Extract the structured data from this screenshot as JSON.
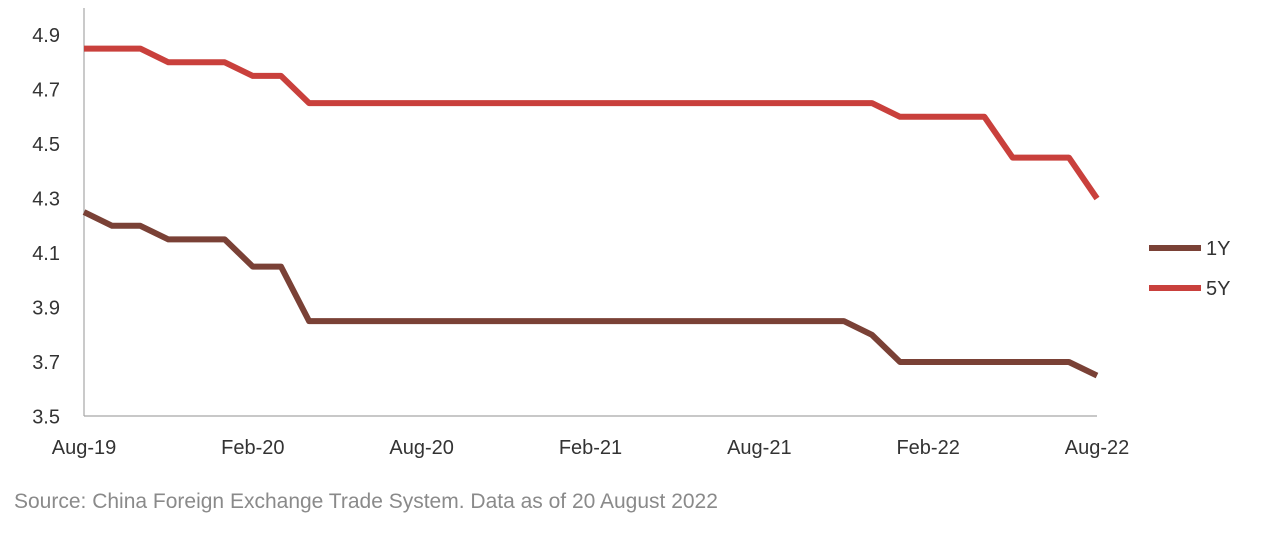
{
  "chart_data": {
    "type": "line",
    "title": "",
    "xlabel": "",
    "ylabel": "",
    "x": [
      "Aug-19",
      "Sep-19",
      "Oct-19",
      "Nov-19",
      "Dec-19",
      "Jan-20",
      "Feb-20",
      "Mar-20",
      "Apr-20",
      "May-20",
      "Jun-20",
      "Jul-20",
      "Aug-20",
      "Sep-20",
      "Oct-20",
      "Nov-20",
      "Dec-20",
      "Jan-21",
      "Feb-21",
      "Mar-21",
      "Apr-21",
      "May-21",
      "Jun-21",
      "Jul-21",
      "Aug-21",
      "Sep-21",
      "Oct-21",
      "Nov-21",
      "Dec-21",
      "Jan-22",
      "Feb-22",
      "Mar-22",
      "Apr-22",
      "May-22",
      "Jun-22",
      "Jul-22",
      "Aug-22"
    ],
    "x_tick_labels": [
      "Aug-19",
      "Feb-20",
      "Aug-20",
      "Feb-21",
      "Aug-21",
      "Feb-22",
      "Aug-22"
    ],
    "ylim": [
      3.5,
      4.9
    ],
    "y_ticks": [
      "3.5",
      "3.7",
      "3.9",
      "4.1",
      "4.3",
      "4.5",
      "4.7",
      "4.9"
    ],
    "grid": false,
    "legend_position": "right",
    "series": [
      {
        "name": "1Y",
        "color": "#7a4136",
        "values": [
          4.25,
          4.2,
          4.2,
          4.15,
          4.15,
          4.15,
          4.05,
          4.05,
          3.85,
          3.85,
          3.85,
          3.85,
          3.85,
          3.85,
          3.85,
          3.85,
          3.85,
          3.85,
          3.85,
          3.85,
          3.85,
          3.85,
          3.85,
          3.85,
          3.85,
          3.85,
          3.85,
          3.85,
          3.8,
          3.7,
          3.7,
          3.7,
          3.7,
          3.7,
          3.7,
          3.7,
          3.65
        ]
      },
      {
        "name": "5Y",
        "color": "#c9403c",
        "values": [
          4.85,
          4.85,
          4.85,
          4.8,
          4.8,
          4.8,
          4.75,
          4.75,
          4.65,
          4.65,
          4.65,
          4.65,
          4.65,
          4.65,
          4.65,
          4.65,
          4.65,
          4.65,
          4.65,
          4.65,
          4.65,
          4.65,
          4.65,
          4.65,
          4.65,
          4.65,
          4.65,
          4.65,
          4.65,
          4.6,
          4.6,
          4.6,
          4.6,
          4.45,
          4.45,
          4.45,
          4.3
        ]
      }
    ]
  },
  "source_text": "Source: China Foreign Exchange Trade System. Data as of 20 August 2022"
}
